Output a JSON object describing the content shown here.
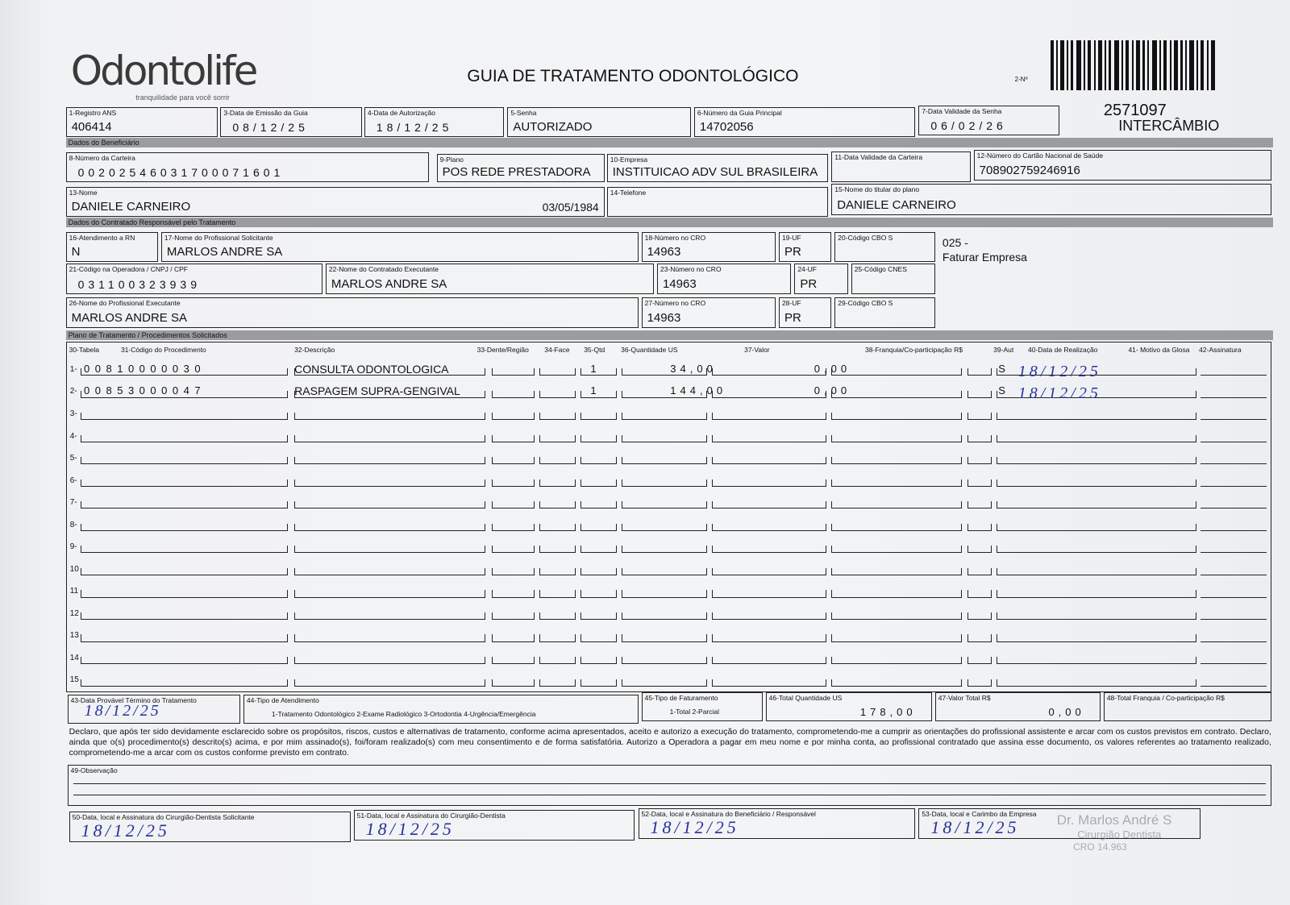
{
  "header": {
    "logo": "Odontolife",
    "logo_tagline": "tranquilidade para você sorrir",
    "title": "GUIA DE TRATAMENTO ODONTOLÓGICO",
    "copy_label": "2-Nº",
    "number": "2571097",
    "exchange": "INTERCÂMBIO"
  },
  "sections": [
    "Dados do Beneficiário",
    "Dados do Contratado Responsável pelo Tratamento",
    "Plano de Tratamento / Procedimentos Solicitados"
  ],
  "fields": [
    {
      "label": "1-Registro ANS",
      "value": "406414"
    },
    {
      "label": "3-Data de Emissão da Guia",
      "value": "08/12/25"
    },
    {
      "label": "4-Data de Autorização",
      "value": "18/12/25"
    },
    {
      "label": "5-Senha",
      "value": "AUTORIZADO"
    },
    {
      "label": "6-Número da Guia Principal",
      "value": "14702056"
    },
    {
      "label": "7-Data Validade da Senha",
      "value": "06/02/26"
    },
    {
      "label": "8-Número da Carteira",
      "value": "00202546031700071601"
    },
    {
      "label": "9-Plano",
      "value": "POS REDE PRESTADORA"
    },
    {
      "label": "10-Empresa",
      "value": "INSTITUICAO ADV SUL BRASILEIRA"
    },
    {
      "label": "11-Data Validade da Carteira"
    },
    {
      "label": "12-Número do Cartão Nacional de Saúde",
      "value": "708902759246916"
    },
    {
      "label": "13-Nome",
      "value": "DANIELE CARNEIRO",
      "extra": "03/05/1984"
    },
    {
      "label": "14-Telefone"
    },
    {
      "label": "15-Nome do titular do plano",
      "value": "DANIELE CARNEIRO"
    },
    {
      "label": "16-Atendimento a RN",
      "value": "N"
    },
    {
      "label": "17-Nome do Profissional Solicitante",
      "value": "MARLOS ANDRE SA"
    },
    {
      "label": "18-Número no CRO",
      "value": "14963"
    },
    {
      "label": "19-UF",
      "value": "PR"
    },
    {
      "label": "20-Código CBO S"
    },
    {
      "label": "21-Código na Operadora / CNPJ / CPF",
      "value": "031100323939"
    },
    {
      "label": "22-Nome do Contratado Executante",
      "value": "MARLOS ANDRE SA"
    },
    {
      "label": "23-Número no CRO",
      "value": "14963"
    },
    {
      "label": "24-UF",
      "value": "PR"
    },
    {
      "label": "25-Código CNES"
    },
    {
      "label": "26-Nome do Profissional Executante",
      "value": "MARLOS ANDRE SA"
    },
    {
      "label": "27-Número no CRO",
      "value": "14963"
    },
    {
      "label": "28-UF",
      "value": "PR"
    },
    {
      "label": "29-Código CBO S"
    }
  ],
  "side_note": [
    "025 -",
    "Faturar Empresa"
  ],
  "table": {
    "columns": [
      "30-Tabela",
      "31-Código do Procedimento",
      "32-Descrição",
      "33-Dente/Região",
      "34-Face",
      "35-Qtd",
      "36-Quantidade US",
      "37-Valor",
      "38-Franquia/Co-participação R$",
      "39-Aut",
      "40-Data de Realização",
      "41- Motivo da Glosa",
      "42-Assinatura"
    ],
    "rows": [
      {
        "number": "1-",
        "code": "00810000030",
        "description": "CONSULTA ODONTOLOGICA",
        "qty": "1",
        "qty_us": "34,00",
        "value": "0,00",
        "auth": "S",
        "date": "18/12/25"
      },
      {
        "number": "2-",
        "code": "00853000047",
        "description": "RASPAGEM SUPRA-GENGIVAL",
        "qty": "1",
        "qty_us": "144,00",
        "value": "0,00",
        "auth": "S",
        "date": "18/12/25"
      },
      {
        "number": "3-"
      },
      {
        "number": "4-"
      },
      {
        "number": "5-"
      },
      {
        "number": "6-"
      },
      {
        "number": "7-"
      },
      {
        "number": "8-"
      },
      {
        "number": "9-"
      },
      {
        "number": "10"
      },
      {
        "number": "11"
      },
      {
        "number": "12"
      },
      {
        "number": "13"
      },
      {
        "number": "14"
      },
      {
        "number": "15"
      }
    ]
  },
  "totals": [
    {
      "label": "43-Data Provável Término do Tratamento",
      "value": "18/12/25"
    },
    {
      "label": "44-Tipo de Atendimento",
      "value": "1-Tratamento Odontológico  2-Exame Radiológico  3-Ortodontia  4-Urgência/Emergência"
    },
    {
      "label": "45-Tipo de Faturamento",
      "value": "1-Total  2-Parcial"
    },
    {
      "label": "46-Total Quantidade US",
      "value": "178,00"
    },
    {
      "label": "47-Valor Total R$",
      "value": "0,00"
    },
    {
      "label": "48-Total Franquia / Co-participação R$"
    }
  ],
  "declaration": "Declaro, que após ter sido devidamente esclarecido sobre os propósitos, riscos, custos e alternativas de tratamento, conforme acima apresentados, aceito e autorizo a execução do tratamento, comprometendo-me a cumprir as orientações do profissional assistente e arcar com os custos previstos em contrato. Declaro, ainda que o(s) procedimento(s) descrito(s) acima, e por mim assinado(s), foi/foram realizado(s) com meu consentimento e de forma satisfatória. Autorizo a Operadora a pagar em meu nome e por minha conta, ao profissional contratado que assina esse documento, os valores referentes ao tratamento realizado, comprometendo-me a arcar com os custos conforme previsto em contrato.",
  "observation_label": "49-Observação",
  "signatures": [
    {
      "label": "50-Data, local e Assinatura do Cirurgião-Dentista Solicitante",
      "date": "18/12/25"
    },
    {
      "label": "51-Data, local e Assinatura do Cirurgião-Dentista",
      "date": "18/12/25"
    },
    {
      "label": "52-Data, local e Assinatura do Beneficiário / Responsável",
      "date": "18/12/25"
    },
    {
      "label": "53-Data, local e Carimbo da Empresa",
      "date": "18/12/25"
    }
  ],
  "stamp": [
    "Dr. Marlos André S",
    "Cirurgião Dentista",
    "CRO 14.963"
  ]
}
